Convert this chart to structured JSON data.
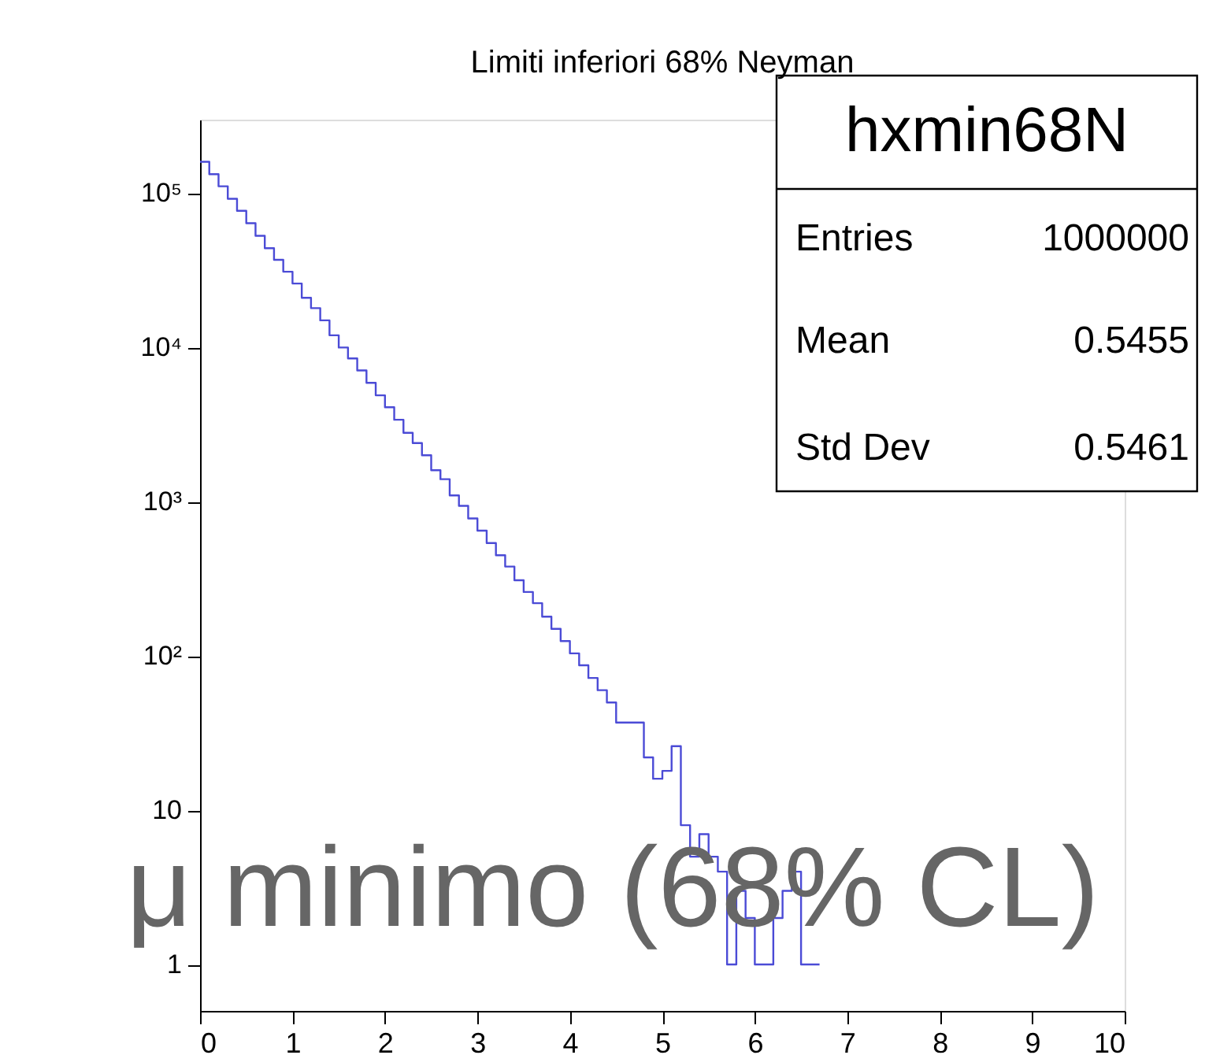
{
  "chart_data": {
    "type": "histogram",
    "title": "Limiti inferiori 68% Neyman",
    "bins": [
      0,
      0.1,
      0.2,
      0.3,
      0.4,
      0.5,
      0.6,
      0.7,
      0.8,
      0.9,
      1.0,
      1.1,
      1.2,
      1.3,
      1.4,
      1.5,
      1.6,
      1.7,
      1.8,
      1.9,
      2.0,
      2.1,
      2.2,
      2.3,
      2.4,
      2.5,
      2.6,
      2.7,
      2.8,
      2.9,
      3.0,
      3.1,
      3.2,
      3.3,
      3.4,
      3.5,
      3.6,
      3.7,
      3.8,
      3.9,
      4.0,
      4.1,
      4.2,
      4.3,
      4.4,
      4.5,
      4.6,
      4.7,
      4.8,
      4.9,
      5.0,
      5.1,
      5.2,
      5.3,
      5.4,
      5.5,
      5.6,
      5.7,
      5.8,
      5.9,
      6.0,
      6.1,
      6.2,
      6.3,
      6.4,
      6.5,
      6.6,
      6.7
    ],
    "values": [
      160000,
      133000,
      111000,
      92000,
      77000,
      64000,
      53000,
      44000,
      37000,
      31000,
      26000,
      21000,
      18000,
      15000,
      12000,
      10000,
      8500,
      7100,
      5900,
      4900,
      4100,
      3400,
      2800,
      2400,
      2000,
      1600,
      1400,
      1100,
      940,
      780,
      650,
      540,
      450,
      380,
      310,
      260,
      220,
      180,
      150,
      125,
      104,
      87,
      72,
      60,
      50,
      37,
      37,
      37,
      22,
      16,
      18,
      26,
      8,
      5,
      7,
      5,
      4,
      1,
      3,
      2,
      1,
      1,
      2,
      3,
      4,
      1,
      1
    ],
    "color": "#4b4bd6",
    "xlim": [
      0,
      10
    ],
    "xticks": [
      0,
      1,
      2,
      3,
      4,
      5,
      6,
      7,
      8,
      9,
      10
    ],
    "ylim": [
      0.5,
      300000
    ],
    "yticks": [
      1,
      10,
      {
        "value": 100,
        "label": "10²"
      },
      {
        "value": 1000,
        "label": "10³"
      },
      {
        "value": 10000,
        "label": "10⁴"
      },
      {
        "value": 100000,
        "label": "10⁵"
      }
    ],
    "log": true,
    "annotations": [
      "hxmin68N",
      "Entries",
      "1000000",
      "Mean",
      "0.5455",
      "Std Dev",
      "0.5461",
      "μ minimo (68% CL)"
    ]
  }
}
